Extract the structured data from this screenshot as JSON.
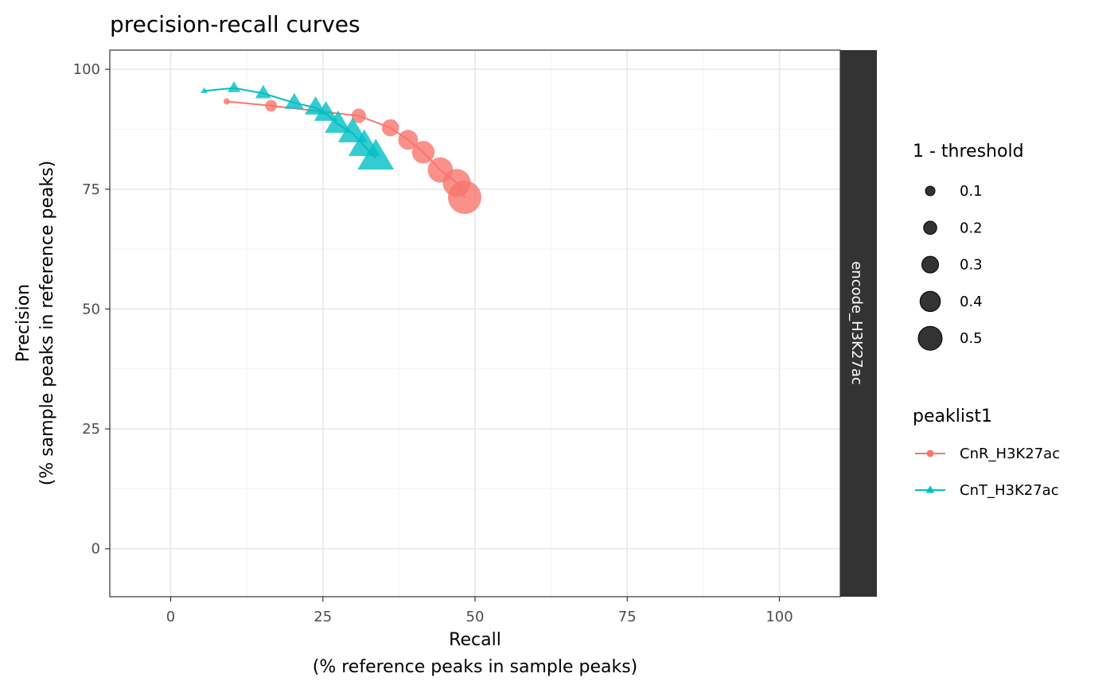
{
  "chart_data": {
    "type": "line",
    "title": "precision-recall curves",
    "xlabel_line1": "Recall",
    "xlabel_line2": "(% reference peaks in sample peaks)",
    "ylabel_line1": "Precision",
    "ylabel_line2": "(% sample peaks in reference peaks)",
    "xlim": [
      -10,
      110
    ],
    "ylim": [
      -10,
      104
    ],
    "x_ticks": [
      0,
      25,
      50,
      75,
      100
    ],
    "y_ticks": [
      0,
      25,
      50,
      75,
      100
    ],
    "x_tick_labels": [
      "0",
      "25",
      "50",
      "75",
      "100"
    ],
    "y_tick_labels": [
      "0",
      "25",
      "50",
      "75",
      "100"
    ],
    "facet_label": "encode_H3K27ac",
    "grid": true,
    "legend_placement": "right",
    "size_legend": {
      "title": "1 - threshold",
      "values": [
        0.1,
        0.2,
        0.3,
        0.4,
        0.5
      ],
      "labels": [
        "0.1",
        "0.2",
        "0.3",
        "0.4",
        "0.5"
      ]
    },
    "color_legend": {
      "title": "peaklist1"
    },
    "series": [
      {
        "name": "CnR_H3K27ac",
        "color": "#F8766D",
        "shape": "circle",
        "points": [
          {
            "x": 9.2,
            "y": 93.3,
            "size": 0.0
          },
          {
            "x": 16.5,
            "y": 92.4,
            "size": 0.1
          },
          {
            "x": 30.9,
            "y": 90.3,
            "size": 0.15
          },
          {
            "x": 36.1,
            "y": 87.8,
            "size": 0.2
          },
          {
            "x": 39.0,
            "y": 85.3,
            "size": 0.25
          },
          {
            "x": 41.5,
            "y": 82.7,
            "size": 0.3
          },
          {
            "x": 44.3,
            "y": 79.0,
            "size": 0.35
          },
          {
            "x": 47.0,
            "y": 76.3,
            "size": 0.4
          },
          {
            "x": 48.3,
            "y": 73.3,
            "size": 0.5
          }
        ]
      },
      {
        "name": "CnT_H3K27ac",
        "color": "#00BFC4",
        "shape": "triangle",
        "points": [
          {
            "x": 5.5,
            "y": 95.5,
            "size": 0.0
          },
          {
            "x": 10.4,
            "y": 96.1,
            "size": 0.1
          },
          {
            "x": 15.2,
            "y": 95.0,
            "size": 0.15
          },
          {
            "x": 20.3,
            "y": 93.0,
            "size": 0.2
          },
          {
            "x": 23.8,
            "y": 92.0,
            "size": 0.25
          },
          {
            "x": 25.5,
            "y": 90.8,
            "size": 0.28
          },
          {
            "x": 27.5,
            "y": 88.5,
            "size": 0.33
          },
          {
            "x": 29.9,
            "y": 86.7,
            "size": 0.38
          },
          {
            "x": 31.8,
            "y": 84.0,
            "size": 0.42
          },
          {
            "x": 33.7,
            "y": 81.5,
            "size": 0.5
          }
        ]
      }
    ]
  }
}
